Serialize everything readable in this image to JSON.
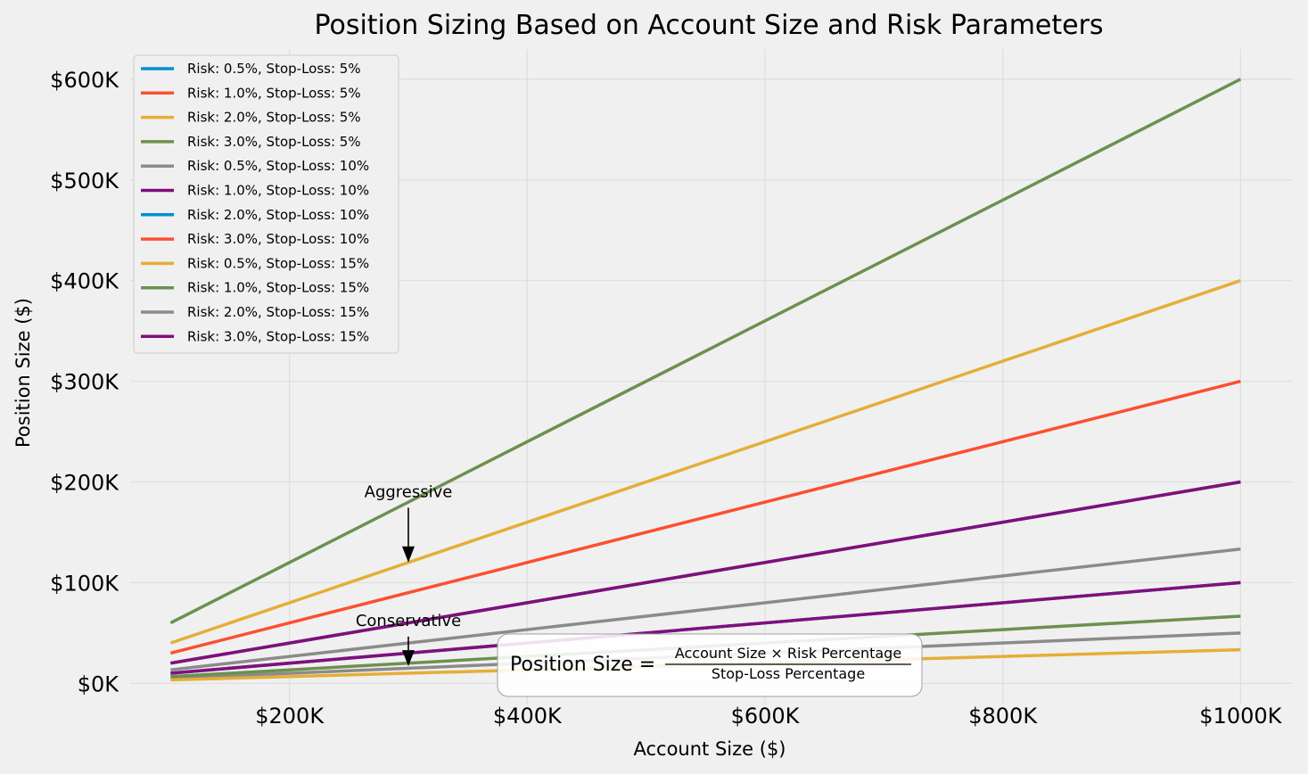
{
  "chart_data": {
    "type": "line",
    "title": "Position Sizing Based on Account Size and Risk Parameters",
    "xlabel": "Account Size ($)",
    "ylabel": "Position Size ($)",
    "x": [
      100000,
      1000000
    ],
    "xlim": [
      66000,
      1044000
    ],
    "ylim": [
      -21000,
      630000
    ],
    "xticks": [
      200000,
      400000,
      600000,
      800000,
      1000000
    ],
    "xtick_labels": [
      "$200K",
      "$400K",
      "$600K",
      "$800K",
      "$1000K"
    ],
    "yticks": [
      0,
      100000,
      200000,
      300000,
      400000,
      500000,
      600000
    ],
    "ytick_labels": [
      "$0K",
      "$100K",
      "$200K",
      "$300K",
      "$400K",
      "$500K",
      "$600K"
    ],
    "grid": true,
    "legend_position": "top-left",
    "series": [
      {
        "name": "Risk: 0.5%, Stop-Loss: 5%",
        "color": "#008fd5",
        "values": [
          10000,
          100000
        ]
      },
      {
        "name": "Risk: 1.0%, Stop-Loss: 5%",
        "color": "#fc4f30",
        "values": [
          20000,
          200000
        ]
      },
      {
        "name": "Risk: 2.0%, Stop-Loss: 5%",
        "color": "#e5ae38",
        "values": [
          40000,
          400000
        ]
      },
      {
        "name": "Risk: 3.0%, Stop-Loss: 5%",
        "color": "#6d904f",
        "values": [
          60000,
          600000
        ]
      },
      {
        "name": "Risk: 0.5%, Stop-Loss: 10%",
        "color": "#8b8b8b",
        "values": [
          5000,
          50000
        ]
      },
      {
        "name": "Risk: 1.0%, Stop-Loss: 10%",
        "color": "#810f7c",
        "values": [
          10000,
          100000
        ]
      },
      {
        "name": "Risk: 2.0%, Stop-Loss: 10%",
        "color": "#008fd5",
        "values": [
          20000,
          200000
        ]
      },
      {
        "name": "Risk: 3.0%, Stop-Loss: 10%",
        "color": "#fc4f30",
        "values": [
          30000,
          300000
        ]
      },
      {
        "name": "Risk: 0.5%, Stop-Loss: 15%",
        "color": "#e5ae38",
        "values": [
          3333,
          33333
        ]
      },
      {
        "name": "Risk: 1.0%, Stop-Loss: 15%",
        "color": "#6d904f",
        "values": [
          6667,
          66667
        ]
      },
      {
        "name": "Risk: 2.0%, Stop-Loss: 15%",
        "color": "#8b8b8b",
        "values": [
          13333,
          133333
        ]
      },
      {
        "name": "Risk: 3.0%, Stop-Loss: 15%",
        "color": "#810f7c",
        "values": [
          20000,
          200000
        ]
      }
    ],
    "annotations": [
      {
        "text": "Aggressive",
        "point": [
          300000,
          120000
        ],
        "text_at": [
          300000,
          185000
        ]
      },
      {
        "text": "Conservative",
        "point": [
          300000,
          17000
        ],
        "text_at": [
          300000,
          57000
        ]
      }
    ],
    "formula": {
      "lhs": "Position Size =",
      "numerator": "Account Size × Risk Percentage",
      "denominator": "Stop-Loss Percentage"
    }
  }
}
